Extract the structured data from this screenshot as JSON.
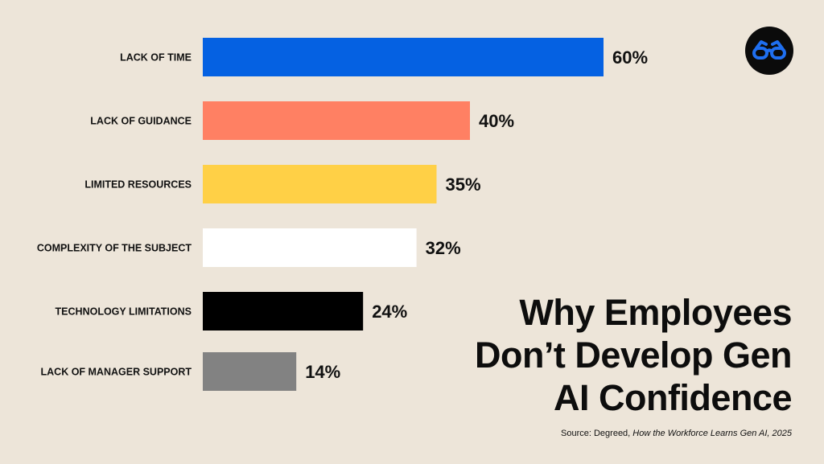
{
  "title_lines": [
    "Why Employees",
    "Don’t Develop Gen",
    "AI Confidence"
  ],
  "source": {
    "prefix": "Source: Degreed, ",
    "report": "How the Workforce Learns Gen AI, 2025"
  },
  "logo": {
    "icon": "glasses-icon",
    "bg": "#0b0b0b",
    "fg": "#1f6ff0"
  },
  "chart_data": {
    "type": "bar",
    "orientation": "horizontal",
    "categories": [
      "LACK OF TIME",
      "LACK OF GUIDANCE",
      "LIMITED RESOURCES",
      "COMPLEXITY OF THE SUBJECT",
      "TECHNOLOGY LIMITATIONS",
      "LACK OF MANAGER SUPPORT"
    ],
    "values": [
      60,
      40,
      35,
      32,
      24,
      14
    ],
    "value_labels": [
      "60%",
      "40%",
      "35%",
      "32%",
      "24%",
      "14%"
    ],
    "colors": [
      "#0561e2",
      "#ff8063",
      "#ffd046",
      "#ffffff",
      "#000000",
      "#828282"
    ],
    "xlim": [
      0,
      60
    ],
    "grid": false,
    "legend": "none"
  }
}
